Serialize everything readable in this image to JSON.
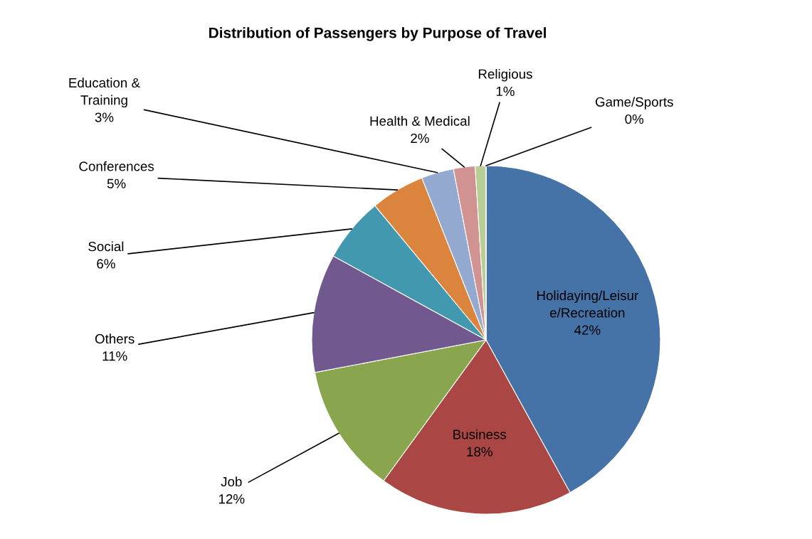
{
  "chart_data": {
    "type": "pie",
    "title": "Distribution of Passengers by Purpose of Travel",
    "categories": [
      "Holidaying/Leisur\ne/Recreation",
      "Business",
      "Job",
      "Others",
      "Social",
      "Conferences",
      "Education &\nTraining",
      "Health & Medical",
      "Religious",
      "Game/Sports"
    ],
    "values": [
      42,
      18,
      12,
      11,
      6,
      5,
      3,
      2,
      1,
      0
    ],
    "value_labels": [
      "42%",
      "18%",
      "12%",
      "11%",
      "6%",
      "5%",
      "3%",
      "2%",
      "1%",
      "0%"
    ],
    "colors": [
      "#4572a7",
      "#aa4643",
      "#89a54e",
      "#71588f",
      "#4198af",
      "#db843d",
      "#93a9cf",
      "#d19392",
      "#b9cd96",
      "#a99bbd"
    ],
    "legend": false
  }
}
